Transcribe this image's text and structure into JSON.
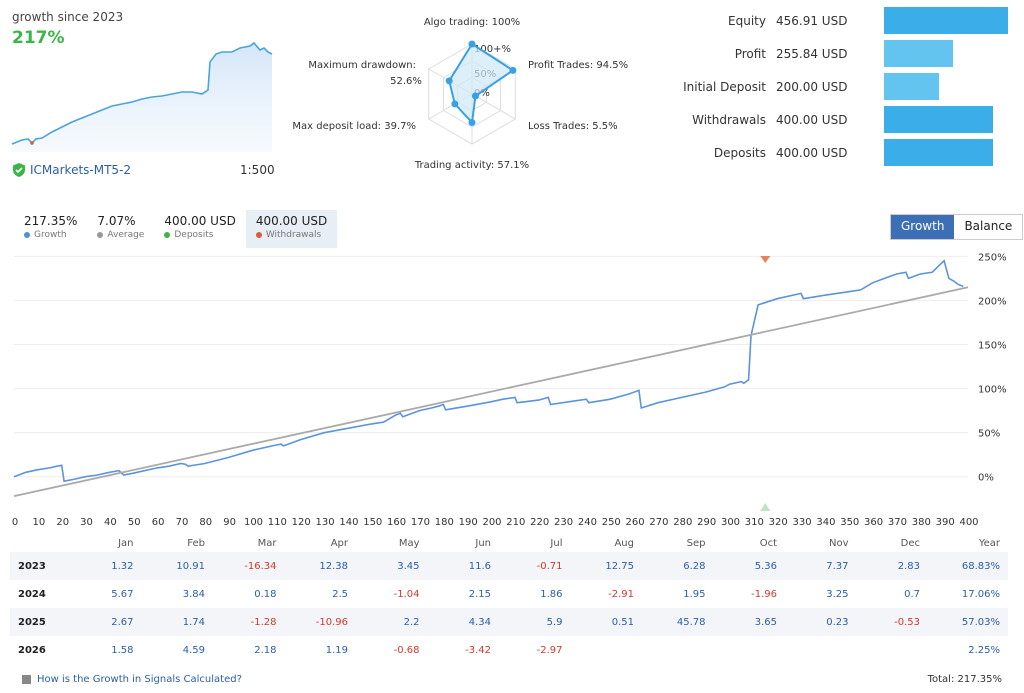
{
  "summary": {
    "label": "growth since 2023",
    "percent": "217%",
    "broker": "ICMarkets-MT5-2",
    "leverage": "1:500"
  },
  "radar": {
    "axes": [
      {
        "label": "Algo trading: 100%",
        "value": 100
      },
      {
        "label": "Profit Trades: 94.5%",
        "value": 94.5
      },
      {
        "label": "Loss Trades: 5.5%",
        "value": 5.5
      },
      {
        "label": "Trading activity: 57.1%",
        "value": 57.1
      },
      {
        "label": "Max deposit load: 39.7%",
        "value": 39.7
      },
      {
        "label": "Maximum drawdown: 52.6%",
        "value": 52.6
      }
    ],
    "ring_labels": [
      "100+%",
      "50%",
      "0%"
    ]
  },
  "stats": [
    {
      "name": "Equity",
      "value": "456.91 USD",
      "fill": 1.0,
      "color": "#3baeea"
    },
    {
      "name": "Profit",
      "value": "255.84 USD",
      "fill": 0.56,
      "color": "#64c4f0"
    },
    {
      "name": "Initial Deposit",
      "value": "200.00 USD",
      "fill": 0.44,
      "color": "#64c4f0"
    },
    {
      "name": "Withdrawals",
      "value": "400.00 USD",
      "fill": 0.875,
      "color": "#3baeea"
    },
    {
      "name": "Deposits",
      "value": "400.00 USD",
      "fill": 0.875,
      "color": "#3baeea"
    }
  ],
  "legend": [
    {
      "value": "217.35%",
      "label": "Growth",
      "color": "#4a90d9"
    },
    {
      "value": "7.07%",
      "label": "Average",
      "color": "#999999"
    },
    {
      "value": "400.00 USD",
      "label": "Deposits",
      "color": "#3bb54a"
    },
    {
      "value": "400.00 USD",
      "label": "Withdrawals",
      "color": "#e05a3a"
    }
  ],
  "toggle": {
    "growth": "Growth",
    "balance": "Balance"
  },
  "chart_data": {
    "type": "line",
    "x_ticks": [
      0,
      10,
      20,
      30,
      40,
      50,
      60,
      70,
      80,
      90,
      100,
      110,
      120,
      130,
      140,
      150,
      160,
      170,
      180,
      190,
      200,
      210,
      220,
      230,
      240,
      250,
      260,
      270,
      280,
      290,
      300,
      310,
      320,
      330,
      340,
      350,
      360,
      370,
      380,
      390,
      400
    ],
    "y_ticks": [
      "250%",
      "200%",
      "150%",
      "100%",
      "50%",
      "0%"
    ],
    "ylim": [
      -40,
      255
    ],
    "xlim": [
      0,
      400
    ],
    "series": [
      {
        "name": "Growth",
        "color": "#5b93dd",
        "points": [
          [
            0,
            0
          ],
          [
            5,
            5
          ],
          [
            10,
            8
          ],
          [
            15,
            10
          ],
          [
            18,
            12
          ],
          [
            20,
            13
          ],
          [
            21,
            -5
          ],
          [
            25,
            -3
          ],
          [
            30,
            0
          ],
          [
            35,
            2
          ],
          [
            40,
            5
          ],
          [
            42,
            6
          ],
          [
            44,
            7
          ],
          [
            46,
            2
          ],
          [
            50,
            4
          ],
          [
            60,
            10
          ],
          [
            65,
            12
          ],
          [
            70,
            15
          ],
          [
            72,
            14
          ],
          [
            73,
            12
          ],
          [
            80,
            15
          ],
          [
            90,
            22
          ],
          [
            100,
            30
          ],
          [
            110,
            36
          ],
          [
            112,
            37
          ],
          [
            113,
            35
          ],
          [
            120,
            42
          ],
          [
            130,
            50
          ],
          [
            140,
            55
          ],
          [
            150,
            60
          ],
          [
            155,
            62
          ],
          [
            160,
            70
          ],
          [
            162,
            72
          ],
          [
            163,
            68
          ],
          [
            170,
            75
          ],
          [
            175,
            78
          ],
          [
            178,
            80
          ],
          [
            180,
            82
          ],
          [
            181,
            76
          ],
          [
            190,
            80
          ],
          [
            200,
            85
          ],
          [
            205,
            88
          ],
          [
            210,
            90
          ],
          [
            211,
            84
          ],
          [
            220,
            87
          ],
          [
            224,
            90
          ],
          [
            225,
            82
          ],
          [
            235,
            86
          ],
          [
            240,
            88
          ],
          [
            241,
            84
          ],
          [
            250,
            88
          ],
          [
            258,
            94
          ],
          [
            262,
            98
          ],
          [
            263,
            78
          ],
          [
            270,
            84
          ],
          [
            280,
            90
          ],
          [
            290,
            96
          ],
          [
            298,
            102
          ],
          [
            300,
            105
          ],
          [
            305,
            108
          ],
          [
            306,
            106
          ],
          [
            308,
            110
          ],
          [
            309,
            160
          ],
          [
            312,
            195
          ],
          [
            320,
            202
          ],
          [
            330,
            208
          ],
          [
            331,
            202
          ],
          [
            340,
            206
          ],
          [
            350,
            210
          ],
          [
            355,
            212
          ],
          [
            360,
            220
          ],
          [
            365,
            225
          ],
          [
            370,
            230
          ],
          [
            374,
            232
          ],
          [
            375,
            225
          ],
          [
            380,
            230
          ],
          [
            385,
            232
          ],
          [
            388,
            240
          ],
          [
            390,
            245
          ],
          [
            392,
            225
          ],
          [
            394,
            222
          ],
          [
            396,
            218
          ],
          [
            398,
            216
          ]
        ]
      },
      {
        "name": "Average",
        "color": "#aaaaaa",
        "points": [
          [
            0,
            -22
          ],
          [
            400,
            215
          ]
        ]
      }
    ],
    "markers": [
      {
        "x": 315,
        "type": "withdrawal",
        "position": "top"
      },
      {
        "x": 315,
        "type": "deposit",
        "position": "bottom"
      }
    ]
  },
  "monthly": {
    "months": [
      "Jan",
      "Feb",
      "Mar",
      "Apr",
      "May",
      "Jun",
      "Jul",
      "Aug",
      "Sep",
      "Oct",
      "Nov",
      "Dec"
    ],
    "year_label": "Year",
    "rows": [
      {
        "year": "2023",
        "values": [
          "1.32",
          "10.91",
          "-16.34",
          "12.38",
          "3.45",
          "11.6",
          "-0.71",
          "12.75",
          "6.28",
          "5.36",
          "7.37",
          "2.83"
        ],
        "total": "68.83%"
      },
      {
        "year": "2024",
        "values": [
          "5.67",
          "3.84",
          "0.18",
          "2.5",
          "-1.04",
          "2.15",
          "1.86",
          "-2.91",
          "1.95",
          "-1.96",
          "3.25",
          "0.7"
        ],
        "total": "17.06%"
      },
      {
        "year": "2025",
        "values": [
          "2.67",
          "1.74",
          "-1.28",
          "-10.96",
          "2.2",
          "4.34",
          "5.9",
          "0.51",
          "45.78",
          "3.65",
          "0.23",
          "-0.53"
        ],
        "total": "57.03%"
      },
      {
        "year": "2026",
        "values": [
          "1.58",
          "4.59",
          "2.18",
          "1.19",
          "-0.68",
          "-3.42",
          "-2.97",
          "",
          "",
          "",
          "",
          ""
        ],
        "total": "2.25%"
      }
    ]
  },
  "footer": {
    "link": "How is the Growth in Signals Calculated?",
    "total": "Total: 217.35%"
  }
}
